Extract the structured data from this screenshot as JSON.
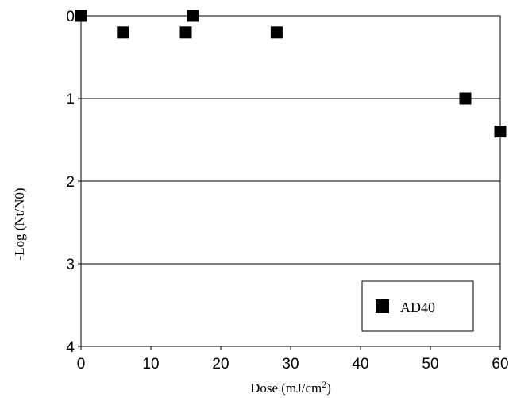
{
  "chart_data": {
    "type": "scatter",
    "xlabel": "Dose (mJ/cm",
    "xlabel_sup": "2",
    "xlabel_end": ")",
    "ylabel": "-Log (Nt/N0)",
    "xlim": [
      0,
      60
    ],
    "ylim": [
      0,
      4
    ],
    "y_inverted": true,
    "x_ticks": [
      0,
      10,
      20,
      30,
      40,
      50,
      60
    ],
    "x_tick_labels": [
      "0",
      "10",
      "20",
      "30",
      "40",
      "50",
      "60"
    ],
    "y_ticks": [
      0,
      1,
      2,
      3,
      4
    ],
    "y_tick_labels": [
      "0",
      "1",
      "2",
      "3",
      "4"
    ],
    "grid": "horizontal",
    "legend_position": "bottom-right",
    "series": [
      {
        "name": "AD40",
        "marker": "square",
        "color": "#000000",
        "points": [
          {
            "x": 0,
            "y": 0
          },
          {
            "x": 6,
            "y": 0.2
          },
          {
            "x": 15,
            "y": 0.2
          },
          {
            "x": 16,
            "y": 0
          },
          {
            "x": 28,
            "y": 0.2
          },
          {
            "x": 55,
            "y": 1
          },
          {
            "x": 60,
            "y": 1.4
          }
        ]
      }
    ]
  }
}
